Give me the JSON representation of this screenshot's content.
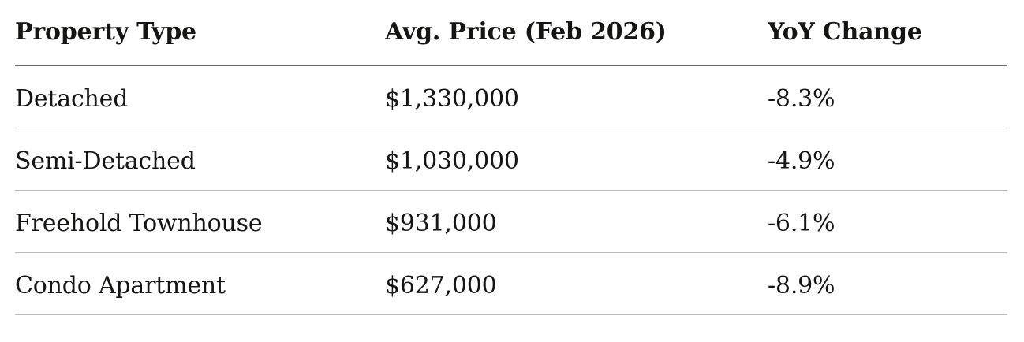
{
  "table": {
    "columns": [
      {
        "key": "property_type",
        "label": "Property Type"
      },
      {
        "key": "avg_price",
        "label": "Avg. Price (Feb 2026)"
      },
      {
        "key": "yoy_change",
        "label": "YoY Change"
      }
    ],
    "rows": [
      {
        "property_type": "Detached",
        "avg_price": "$1,330,000",
        "yoy_change": "-8.3%"
      },
      {
        "property_type": "Semi-Detached",
        "avg_price": "$1,030,000",
        "yoy_change": "-4.9%"
      },
      {
        "property_type": "Freehold Townhouse",
        "avg_price": "$931,000",
        "yoy_change": "-6.1%"
      },
      {
        "property_type": "Condo Apartment",
        "avg_price": "$627,000",
        "yoy_change": "-8.9%"
      }
    ]
  },
  "colors": {
    "text": "#151514",
    "header_border": "#6a6a6a",
    "row_border": "#b9b9b9",
    "background": "#ffffff"
  }
}
